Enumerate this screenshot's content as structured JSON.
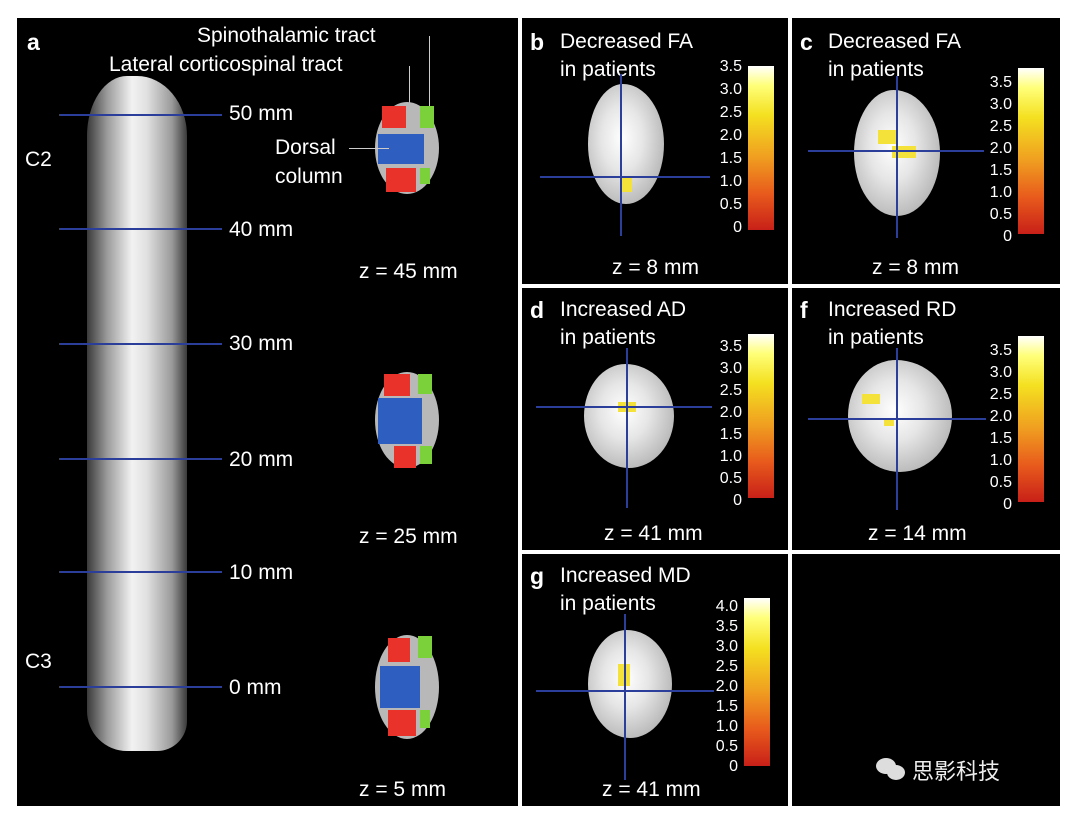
{
  "panel_a": {
    "letter": "a",
    "spinothalamic": "Spinothalamic tract",
    "lateral": "Lateral corticospinal tract",
    "dorsal": "Dorsal",
    "column": "column",
    "c2": "C2",
    "c3": "C3",
    "mm": [
      "50 mm",
      "40 mm",
      "30 mm",
      "20 mm",
      "10 mm",
      "0 mm"
    ],
    "z1": "z = 45 mm",
    "z2": "z = 25 mm",
    "z3": "z = 5 mm"
  },
  "panel_b": {
    "letter": "b",
    "line1": "Decreased FA",
    "line2": "in patients",
    "z": "z = 8 mm"
  },
  "panel_c": {
    "letter": "c",
    "line1": "Decreased FA",
    "line2": "in patients",
    "z": "z = 8 mm"
  },
  "panel_d": {
    "letter": "d",
    "line1": "Increased AD",
    "line2": "in patients",
    "z": "z = 41 mm"
  },
  "panel_f": {
    "letter": "f",
    "line1": "Increased RD",
    "line2": "in patients",
    "z": "z = 14 mm"
  },
  "panel_g": {
    "letter": "g",
    "line1": "Increased MD",
    "line2": "in patients",
    "z": "z = 41 mm"
  },
  "scale35": [
    "3.5",
    "3.0",
    "2.5",
    "2.0",
    "1.5",
    "1.0",
    "0.5",
    "0"
  ],
  "scale40": [
    "4.0",
    "3.5",
    "3.0",
    "2.5",
    "2.0",
    "1.5",
    "1.0",
    "0.5",
    "0"
  ],
  "watermark": "思影科技",
  "colors": {
    "red": "#e8322a",
    "blue": "#2e5fc0",
    "green": "#7ad13a",
    "yellow": "#f4e23a",
    "crosshair": "#2a3e9a"
  }
}
